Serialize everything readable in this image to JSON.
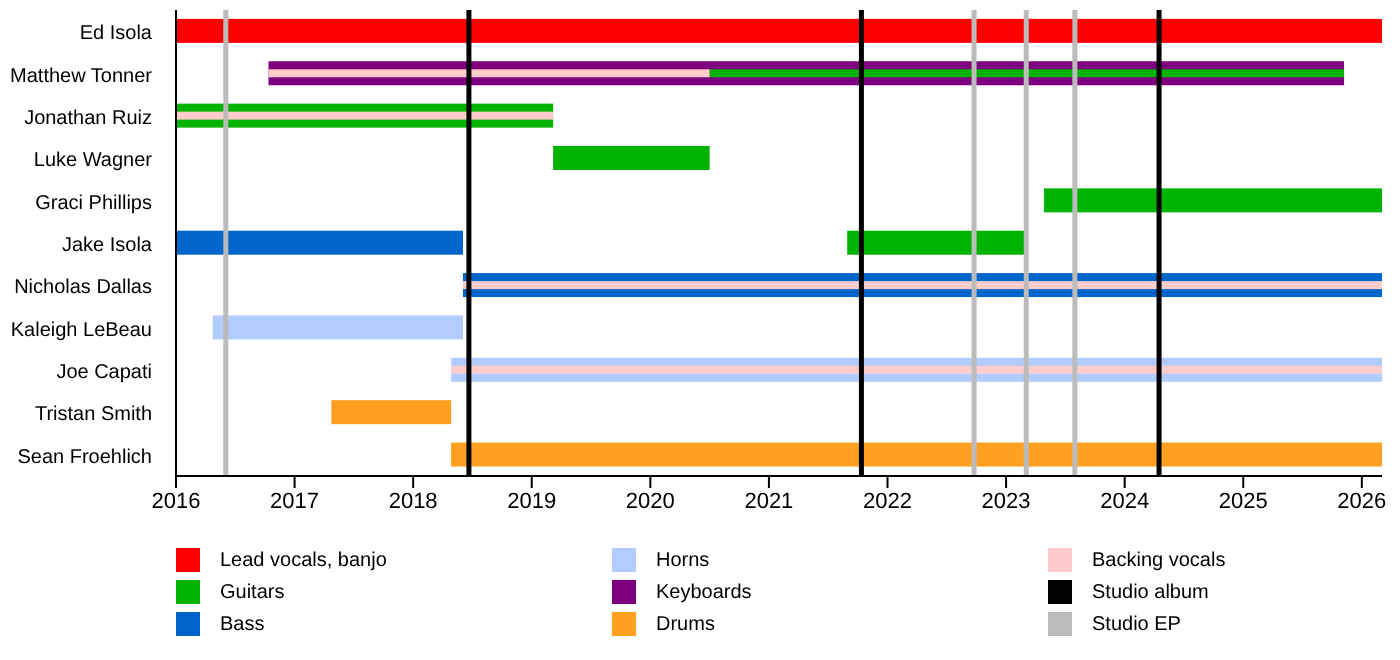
{
  "chart_data": {
    "type": "bar",
    "orientation": "horizontal",
    "categories": [
      "Ed Isola",
      "Matthew Tonner",
      "Jonathan Ruiz",
      "Luke Wagner",
      "Graci Phillips",
      "Jake Isola",
      "Nicholas Dallas",
      "Kaleigh LeBeau",
      "Joe Capati",
      "Tristan Smith",
      "Sean Froehlich"
    ],
    "series": [
      {
        "name": "Lead vocals, banjo",
        "color": "#ff0000",
        "base": [
          2016,
          null,
          null,
          null,
          null,
          null,
          null,
          null,
          null,
          null,
          null
        ],
        "values": [
          10.17,
          null,
          null,
          null,
          null,
          null,
          null,
          null,
          null,
          null,
          null
        ]
      },
      {
        "name": "Guitars",
        "color": "#00b300",
        "base": [
          null,
          2020.5,
          2016,
          2019.18,
          2023.32,
          2021.66,
          null,
          null,
          null,
          null,
          null
        ],
        "values": [
          null,
          5.35,
          3.18,
          1.32,
          2.85,
          1.52,
          null,
          null,
          null,
          null,
          null
        ]
      },
      {
        "name": "Bass",
        "color": "#0066cc",
        "base": [
          null,
          null,
          null,
          null,
          null,
          2016,
          2018.42,
          null,
          null,
          null,
          null
        ],
        "values": [
          null,
          null,
          null,
          null,
          null,
          2.42,
          7.75,
          null,
          null,
          null,
          null
        ]
      },
      {
        "name": "Horns",
        "color": "#b3ccff",
        "base": [
          null,
          null,
          null,
          null,
          null,
          null,
          null,
          2016.31,
          2018.32,
          null,
          null
        ],
        "values": [
          null,
          null,
          null,
          null,
          null,
          null,
          null,
          2.11,
          7.85,
          null,
          null
        ]
      },
      {
        "name": "Keyboards",
        "color": "#7f007f",
        "base": [
          null,
          2016.78,
          null,
          null,
          null,
          null,
          null,
          null,
          null,
          null,
          null
        ],
        "values": [
          null,
          9.07,
          null,
          null,
          null,
          null,
          null,
          null,
          null,
          null,
          null
        ]
      },
      {
        "name": "Drums",
        "color": "#ffa020",
        "base": [
          null,
          null,
          null,
          null,
          null,
          null,
          null,
          null,
          null,
          2017.31,
          2018.32
        ],
        "values": [
          null,
          null,
          null,
          null,
          null,
          null,
          null,
          null,
          null,
          1.01,
          7.85
        ]
      },
      {
        "name": "Backing vocals",
        "color": "#ffcccc",
        "base": [
          null,
          2016.78,
          2016,
          null,
          null,
          null,
          2018.42,
          null,
          2018.32,
          null,
          null
        ],
        "values": [
          null,
          3.72,
          3.18,
          null,
          null,
          null,
          7.75,
          null,
          7.85,
          null,
          null
        ]
      }
    ],
    "ref_lines": [
      {
        "axis": "x",
        "value": 2018.47,
        "label": "Studio album",
        "color": "#000000"
      },
      {
        "axis": "x",
        "value": 2021.78,
        "color": "#000000"
      },
      {
        "axis": "x",
        "value": 2024.29,
        "color": "#000000"
      },
      {
        "axis": "x",
        "value": 2016.42,
        "label": "Studio EP",
        "color": "#bbbbbb"
      },
      {
        "axis": "x",
        "value": 2022.73,
        "color": "#bbbbbb"
      },
      {
        "axis": "x",
        "value": 2023.17,
        "color": "#bbbbbb"
      },
      {
        "axis": "x",
        "value": 2023.58,
        "color": "#bbbbbb"
      }
    ],
    "xlim": [
      2016,
      2026.17
    ],
    "xticks": [
      2016,
      2017,
      2018,
      2019,
      2020,
      2021,
      2022,
      2023,
      2024,
      2025,
      2026
    ],
    "legend": "bottom",
    "grid": false
  }
}
